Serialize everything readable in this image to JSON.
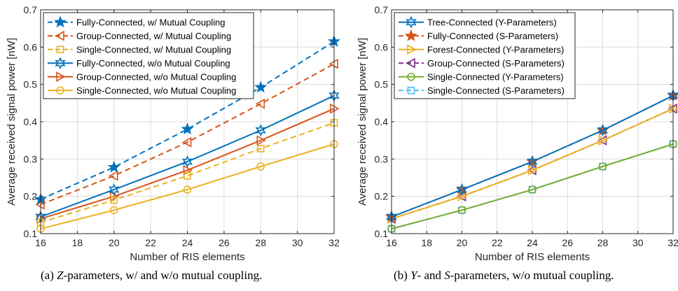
{
  "chart_data": [
    {
      "type": "line",
      "id": "a",
      "xlabel": "Number of RIS elements",
      "ylabel": "Average received signal power [nW]",
      "xlim": [
        16,
        32
      ],
      "ylim": [
        0.1,
        0.7
      ],
      "xticks": [
        16,
        18,
        20,
        22,
        24,
        26,
        28,
        30,
        32
      ],
      "yticks": [
        0.1,
        0.2,
        0.3,
        0.4,
        0.5,
        0.6,
        0.7
      ],
      "grid": true,
      "legend_position": "top-left",
      "x": [
        16,
        20,
        24,
        28,
        32
      ],
      "series": [
        {
          "name": "Fully-Connected, w/ Mutual Coupling",
          "values": [
            0.192,
            0.278,
            0.38,
            0.492,
            0.615
          ],
          "color": "#0072BD",
          "dash": "dashed",
          "marker": "star"
        },
        {
          "name": "Group-Connected, w/ Mutual Coupling",
          "values": [
            0.178,
            0.255,
            0.345,
            0.448,
            0.555
          ],
          "color": "#D95319",
          "dash": "dashed",
          "marker": "triangle-left"
        },
        {
          "name": "Single-Connected, w/ Mutual Coupling",
          "values": [
            0.13,
            0.19,
            0.255,
            0.328,
            0.397
          ],
          "color": "#EDB120",
          "dash": "dashed",
          "marker": "square"
        },
        {
          "name": "Fully-Connected, w/o Mutual Coupling",
          "values": [
            0.145,
            0.218,
            0.293,
            0.377,
            0.47
          ],
          "color": "#0072BD",
          "dash": "solid",
          "marker": "hexagram"
        },
        {
          "name": "Group-Connected, w/o Mutual Coupling",
          "values": [
            0.14,
            0.2,
            0.27,
            0.35,
            0.435
          ],
          "color": "#D95319",
          "dash": "solid",
          "marker": "triangle-right"
        },
        {
          "name": "Single-Connected, w/o Mutual Coupling",
          "values": [
            0.113,
            0.163,
            0.218,
            0.28,
            0.34
          ],
          "color": "#EDB120",
          "dash": "solid",
          "marker": "circle"
        }
      ]
    },
    {
      "type": "line",
      "id": "b",
      "xlabel": "Number of RIS elements",
      "ylabel": "Average received signal power [nW]",
      "xlim": [
        16,
        32
      ],
      "ylim": [
        0.1,
        0.7
      ],
      "xticks": [
        16,
        18,
        20,
        22,
        24,
        26,
        28,
        30,
        32
      ],
      "yticks": [
        0.1,
        0.2,
        0.3,
        0.4,
        0.5,
        0.6,
        0.7
      ],
      "grid": true,
      "legend_position": "top-left",
      "x": [
        16,
        20,
        24,
        28,
        32
      ],
      "series": [
        {
          "name": "Tree-Connected (Y-Parameters)",
          "values": [
            0.145,
            0.218,
            0.293,
            0.377,
            0.47
          ],
          "color": "#0072BD",
          "dash": "solid",
          "marker": "hexagram"
        },
        {
          "name": "Fully-Connected (S-Parameters)",
          "values": [
            0.145,
            0.218,
            0.293,
            0.377,
            0.47
          ],
          "color": "#D95319",
          "dash": "dashed",
          "marker": "star"
        },
        {
          "name": "Forest-Connected (Y-Parameters)",
          "values": [
            0.14,
            0.2,
            0.27,
            0.35,
            0.435
          ],
          "color": "#EDB120",
          "dash": "solid",
          "marker": "triangle-right"
        },
        {
          "name": "Group-Connected (S-Parameters)",
          "values": [
            0.14,
            0.2,
            0.27,
            0.35,
            0.435
          ],
          "color": "#7E2F8E",
          "dash": "dashed",
          "marker": "triangle-left"
        },
        {
          "name": "Single-Connected (Y-Parameters)",
          "values": [
            0.113,
            0.163,
            0.218,
            0.28,
            0.34
          ],
          "color": "#77AC30",
          "dash": "solid",
          "marker": "circle"
        },
        {
          "name": "Single-Connected (S-Parameters)",
          "values": [
            0.113,
            0.163,
            0.218,
            0.28,
            0.34
          ],
          "color": "#4DBEEE",
          "dash": "dashed",
          "marker": "square"
        }
      ]
    }
  ],
  "captions": {
    "a_prefix": "(a) ",
    "a_symbol": "Z",
    "a_text": "-parameters, w/ and w/o mutual coupling.",
    "b_prefix": "(b) ",
    "b_symbol1": "Y",
    "b_mid": "- and ",
    "b_symbol2": "S",
    "b_text": "-parameters, w/o mutual coupling."
  }
}
